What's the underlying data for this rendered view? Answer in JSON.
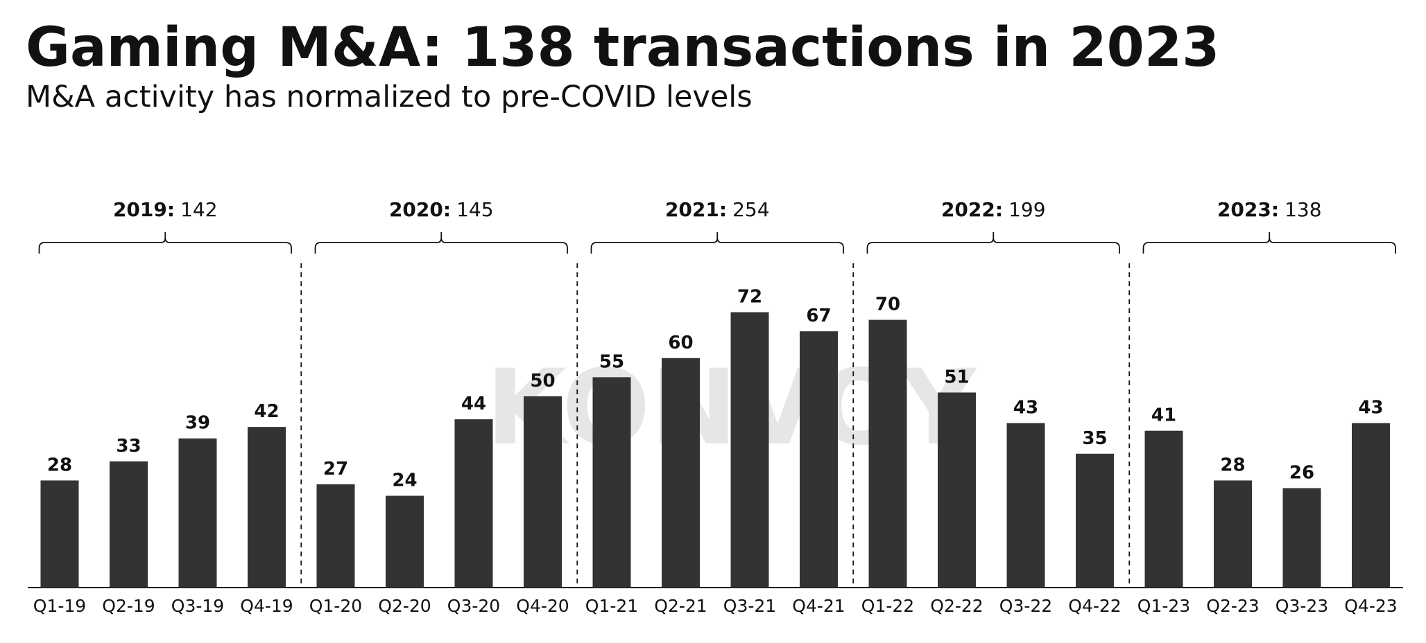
{
  "chart_data": {
    "type": "bar",
    "title": "Gaming M&A: 138 transactions in 2023",
    "subtitle": "M&A activity has normalized to pre-COVID levels",
    "watermark": "KONVOY",
    "categories": [
      "Q1-19",
      "Q2-19",
      "Q3-19",
      "Q4-19",
      "Q1-20",
      "Q2-20",
      "Q3-20",
      "Q4-20",
      "Q1-21",
      "Q2-21",
      "Q3-21",
      "Q4-21",
      "Q1-22",
      "Q2-22",
      "Q3-22",
      "Q4-22",
      "Q1-23",
      "Q2-23",
      "Q3-23",
      "Q4-23"
    ],
    "values": [
      28,
      33,
      39,
      42,
      27,
      24,
      44,
      50,
      55,
      60,
      72,
      67,
      70,
      51,
      43,
      35,
      41,
      28,
      26,
      43
    ],
    "color": "#333333",
    "groups": [
      {
        "label": "2019:",
        "total": 142
      },
      {
        "label": "2020:",
        "total": 145
      },
      {
        "label": "2021:",
        "total": 254
      },
      {
        "label": "2022:",
        "total": 199
      },
      {
        "label": "2023:",
        "total": 138
      }
    ]
  }
}
